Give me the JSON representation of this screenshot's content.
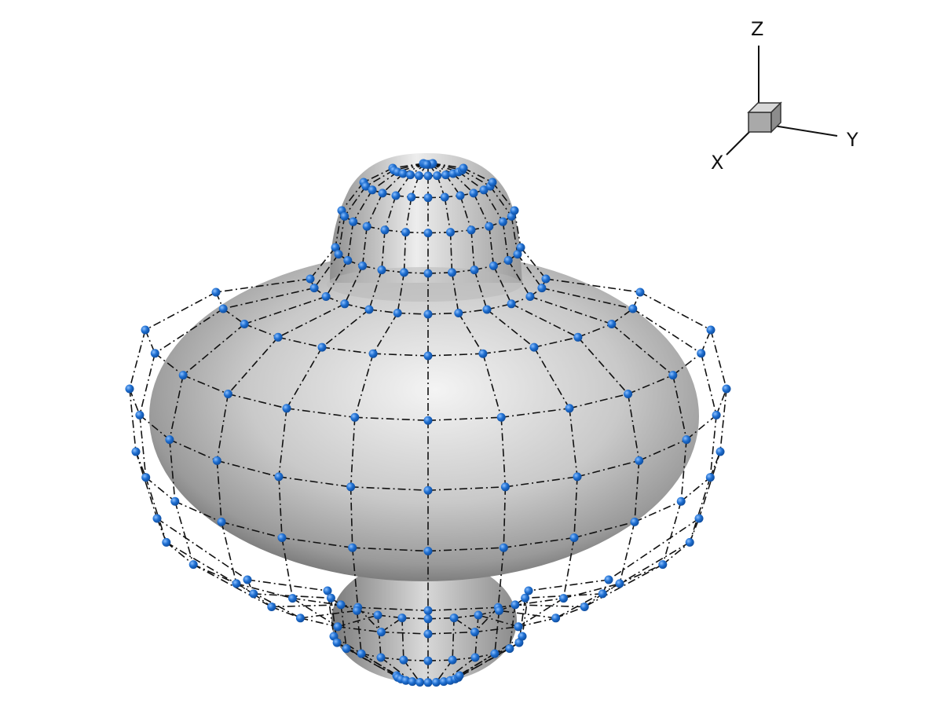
{
  "axis_triad": {
    "labels": {
      "x": "X",
      "y": "Y",
      "z": "Z"
    },
    "cube_color": "#a9a9a9"
  },
  "surface": {
    "shape": "axisymmetric body with top cap, equatorial torus-like bulge and bottom cap",
    "shade_light": "#f2f2f2",
    "shade_mid": "#bdbdbd",
    "shade_dark": "#6f6f6f"
  },
  "control_net": {
    "point_color": "#1f6fd1",
    "point_highlight": "#7fb6ff",
    "line_color": "#111111",
    "line_style": "dash-dot",
    "meridians": 24,
    "rings": 15
  }
}
